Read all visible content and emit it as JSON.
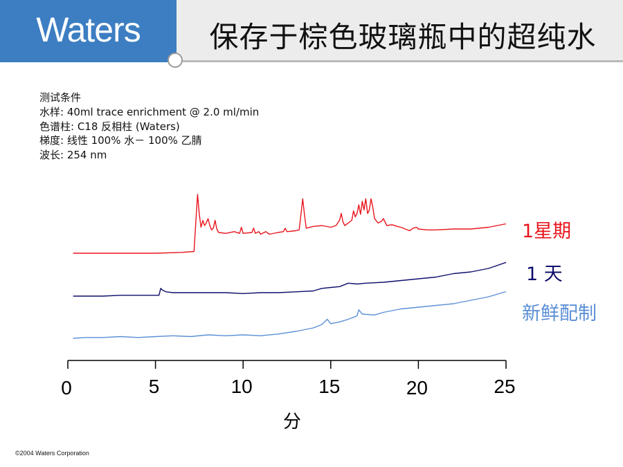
{
  "header": {
    "logo": "Waters",
    "title": "保存于棕色玻璃瓶中的超纯水"
  },
  "conditions": [
    "测试条件",
    "水样: 40ml trace enrichment @ 2.0 ml/min",
    "色谱柱: C18 反相柱 (Waters)",
    "梯度: 线性 100% 水－ 100% 乙腈",
    "波长: 254 nm"
  ],
  "footer": {
    "copyright": "©2004 Waters Corporation"
  },
  "colors": {
    "brand_blue": "#3d7ec2",
    "week": "#e8141c",
    "day": "#0d0d6b",
    "fresh": "#5b8fd6"
  },
  "chart_data": {
    "type": "line",
    "xlabel": "分",
    "xlim": [
      0,
      25
    ],
    "x_ticks": [
      0,
      5,
      10,
      15,
      20,
      25
    ],
    "x_tick_labels": [
      "0",
      "5",
      "10",
      "15",
      "20",
      "25"
    ],
    "series": [
      {
        "name": "1星期",
        "color": "#e8141c",
        "points": [
          [
            0.3,
            0.0
          ],
          [
            3.0,
            0.0
          ],
          [
            5.0,
            0.0
          ],
          [
            6.5,
            0.1
          ],
          [
            7.2,
            0.2
          ],
          [
            7.3,
            3.5
          ],
          [
            7.4,
            6.8
          ],
          [
            7.5,
            4.5
          ],
          [
            7.6,
            3.0
          ],
          [
            7.7,
            3.8
          ],
          [
            7.8,
            3.2
          ],
          [
            7.9,
            3.5
          ],
          [
            8.0,
            4.0
          ],
          [
            8.1,
            3.2
          ],
          [
            8.2,
            2.7
          ],
          [
            8.3,
            2.9
          ],
          [
            8.4,
            3.8
          ],
          [
            8.5,
            2.8
          ],
          [
            8.6,
            2.4
          ],
          [
            9.0,
            2.3
          ],
          [
            9.5,
            2.5
          ],
          [
            9.8,
            2.3
          ],
          [
            9.9,
            3.0
          ],
          [
            10.0,
            2.3
          ],
          [
            10.5,
            2.4
          ],
          [
            10.6,
            2.9
          ],
          [
            10.7,
            2.3
          ],
          [
            10.9,
            2.5
          ],
          [
            11.0,
            2.2
          ],
          [
            11.3,
            2.5
          ],
          [
            11.5,
            2.2
          ],
          [
            12.0,
            2.4
          ],
          [
            12.3,
            2.5
          ],
          [
            12.4,
            2.9
          ],
          [
            12.5,
            2.5
          ],
          [
            13.0,
            2.6
          ],
          [
            13.2,
            2.7
          ],
          [
            13.3,
            4.5
          ],
          [
            13.4,
            6.3
          ],
          [
            13.5,
            4.5
          ],
          [
            13.6,
            2.9
          ],
          [
            14.0,
            3.1
          ],
          [
            14.5,
            3.2
          ],
          [
            15.0,
            3.0
          ],
          [
            15.3,
            3.2
          ],
          [
            15.5,
            3.8
          ],
          [
            15.6,
            4.6
          ],
          [
            15.7,
            3.6
          ],
          [
            15.8,
            3.2
          ],
          [
            16.0,
            3.5
          ],
          [
            16.2,
            3.8
          ],
          [
            16.3,
            4.9
          ],
          [
            16.4,
            4.2
          ],
          [
            16.5,
            4.6
          ],
          [
            16.6,
            5.6
          ],
          [
            16.7,
            4.5
          ],
          [
            16.8,
            6.0
          ],
          [
            16.9,
            5.0
          ],
          [
            17.0,
            6.3
          ],
          [
            17.1,
            4.6
          ],
          [
            17.2,
            5.0
          ],
          [
            17.3,
            6.3
          ],
          [
            17.4,
            5.3
          ],
          [
            17.5,
            4.0
          ],
          [
            17.7,
            3.5
          ],
          [
            17.9,
            3.7
          ],
          [
            18.0,
            4.0
          ],
          [
            18.2,
            3.2
          ],
          [
            18.5,
            3.3
          ],
          [
            18.8,
            3.1
          ],
          [
            19.0,
            3.0
          ],
          [
            19.5,
            2.6
          ],
          [
            19.7,
            2.9
          ],
          [
            19.9,
            3.0
          ],
          [
            20.0,
            2.8
          ],
          [
            20.5,
            2.7
          ],
          [
            21.0,
            2.7
          ],
          [
            22.0,
            2.8
          ],
          [
            23.0,
            2.8
          ],
          [
            24.0,
            3.0
          ],
          [
            25.0,
            3.4
          ]
        ]
      },
      {
        "name": "1 天",
        "color": "#0d0d6b",
        "points": [
          [
            0.3,
            0.0
          ],
          [
            2.0,
            0.0
          ],
          [
            3.0,
            0.1
          ],
          [
            4.0,
            0.1
          ],
          [
            5.2,
            0.1
          ],
          [
            5.3,
            0.9
          ],
          [
            5.4,
            0.7
          ],
          [
            5.6,
            0.5
          ],
          [
            6.0,
            0.4
          ],
          [
            7.0,
            0.4
          ],
          [
            8.0,
            0.4
          ],
          [
            9.0,
            0.4
          ],
          [
            10.0,
            0.3
          ],
          [
            11.0,
            0.4
          ],
          [
            12.0,
            0.4
          ],
          [
            13.0,
            0.5
          ],
          [
            14.0,
            0.6
          ],
          [
            14.5,
            0.9
          ],
          [
            15.0,
            1.0
          ],
          [
            15.5,
            1.1
          ],
          [
            16.0,
            1.5
          ],
          [
            16.5,
            1.4
          ],
          [
            17.0,
            1.5
          ],
          [
            18.0,
            1.6
          ],
          [
            19.0,
            1.8
          ],
          [
            20.0,
            2.0
          ],
          [
            21.0,
            2.2
          ],
          [
            22.0,
            2.6
          ],
          [
            23.0,
            2.8
          ],
          [
            24.0,
            3.2
          ],
          [
            25.0,
            3.9
          ]
        ]
      },
      {
        "name": "新鲜配制",
        "color": "#5b8fd6",
        "points": [
          [
            0.3,
            0.0
          ],
          [
            1.0,
            0.1
          ],
          [
            2.0,
            0.1
          ],
          [
            3.0,
            0.2
          ],
          [
            4.0,
            0.1
          ],
          [
            5.0,
            0.2
          ],
          [
            6.0,
            0.3
          ],
          [
            7.0,
            0.2
          ],
          [
            8.0,
            0.4
          ],
          [
            9.0,
            0.3
          ],
          [
            10.0,
            0.4
          ],
          [
            11.0,
            0.3
          ],
          [
            12.0,
            0.5
          ],
          [
            13.0,
            0.8
          ],
          [
            14.0,
            1.2
          ],
          [
            14.5,
            1.6
          ],
          [
            14.8,
            2.2
          ],
          [
            15.0,
            1.7
          ],
          [
            15.5,
            1.9
          ],
          [
            16.0,
            2.2
          ],
          [
            16.5,
            2.6
          ],
          [
            16.6,
            3.3
          ],
          [
            16.8,
            2.8
          ],
          [
            17.5,
            2.7
          ],
          [
            18.0,
            3.0
          ],
          [
            19.0,
            3.4
          ],
          [
            20.0,
            3.6
          ],
          [
            21.0,
            3.8
          ],
          [
            22.0,
            4.0
          ],
          [
            23.0,
            4.4
          ],
          [
            24.0,
            4.8
          ],
          [
            25.0,
            5.4
          ]
        ]
      }
    ]
  }
}
